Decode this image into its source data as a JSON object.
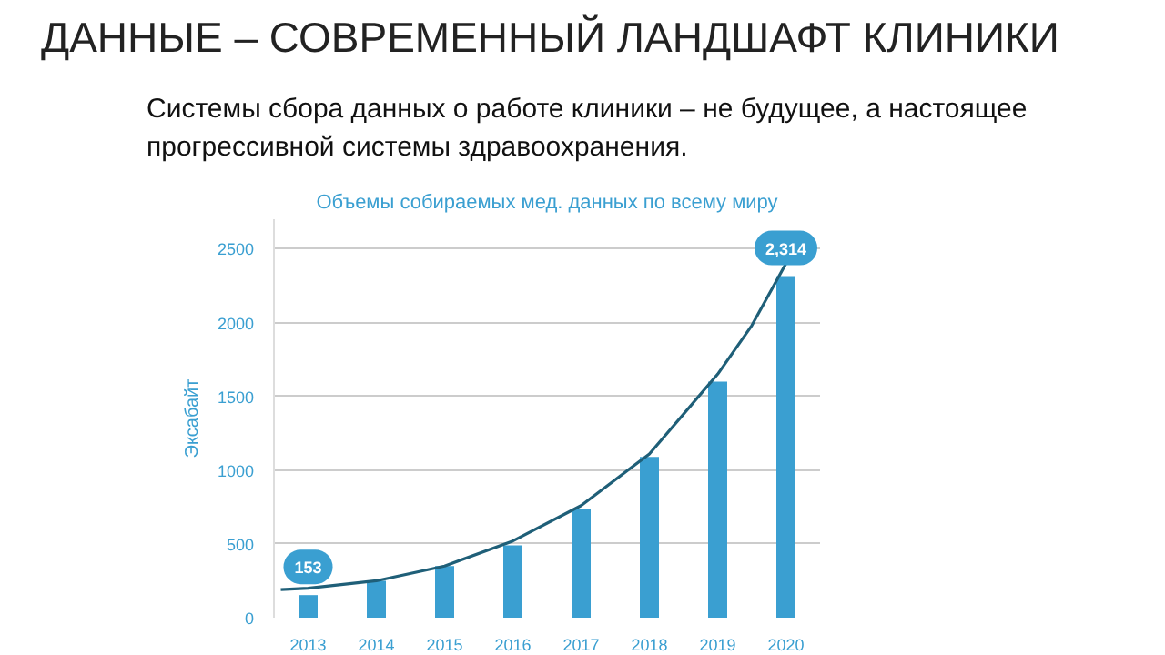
{
  "chart_data": {
    "type": "bar",
    "title": "ДАННЫЕ – СОВРЕМЕННЫЙ ЛАНДШАФТ КЛИНИКИ",
    "subtitle": "Системы сбора данных о работе клиники – не будущее, а настоящее прогрессивной системы здравоохранения.",
    "annotations": [
      "Объемы собираемых мед. данных по всему миру"
    ],
    "ylabel": "Эксабайт",
    "x": [
      2013,
      2014,
      2015,
      2016,
      2017,
      2018,
      2019,
      2020
    ],
    "series": [
      {
        "color": "#3a9fd1",
        "values": [
          153,
          250,
          350,
          490,
          740,
          1090,
          1600,
          2314
        ],
        "value_labels": [
          "153",
          null,
          null,
          null,
          null,
          null,
          null,
          "2,314"
        ]
      },
      {
        "type": "line",
        "color": "#1f5f78",
        "x": [
          2012.6,
          2013,
          2014,
          2015,
          2016,
          2017,
          2018,
          2019,
          2019.5,
          2020
        ],
        "values": [
          190,
          200,
          250,
          350,
          520,
          760,
          1110,
          1650,
          1980,
          2400
        ]
      }
    ],
    "xlim": [
      2012.5,
      2020.5
    ],
    "xticks": [
      2013,
      2014,
      2015,
      2016,
      2017,
      2018,
      2019,
      2020
    ],
    "ylim": [
      0,
      2700
    ],
    "yticks": [
      0,
      500,
      1000,
      1500,
      2000,
      2500
    ],
    "grid": "y",
    "marker": "none",
    "line_style": "solid"
  }
}
